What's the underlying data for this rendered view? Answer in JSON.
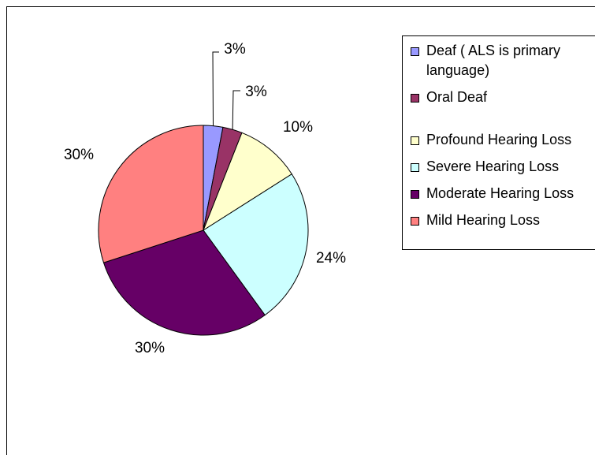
{
  "chart_data": {
    "type": "pie",
    "categories": [
      "Deaf ( ALS is primary language)",
      "Oral Deaf",
      "Profound Hearing Loss",
      "Severe Hearing Loss",
      "Moderate Hearing Loss",
      "Mild Hearing Loss"
    ],
    "values": [
      3,
      3,
      10,
      24,
      30,
      30
    ],
    "value_labels": [
      "3%",
      "3%",
      "10%",
      "24%",
      "30%",
      "30%"
    ],
    "colors": [
      "#9999ff",
      "#993366",
      "#ffffcc",
      "#ccffff",
      "#660066",
      "#ff8080"
    ],
    "legend": "right"
  }
}
